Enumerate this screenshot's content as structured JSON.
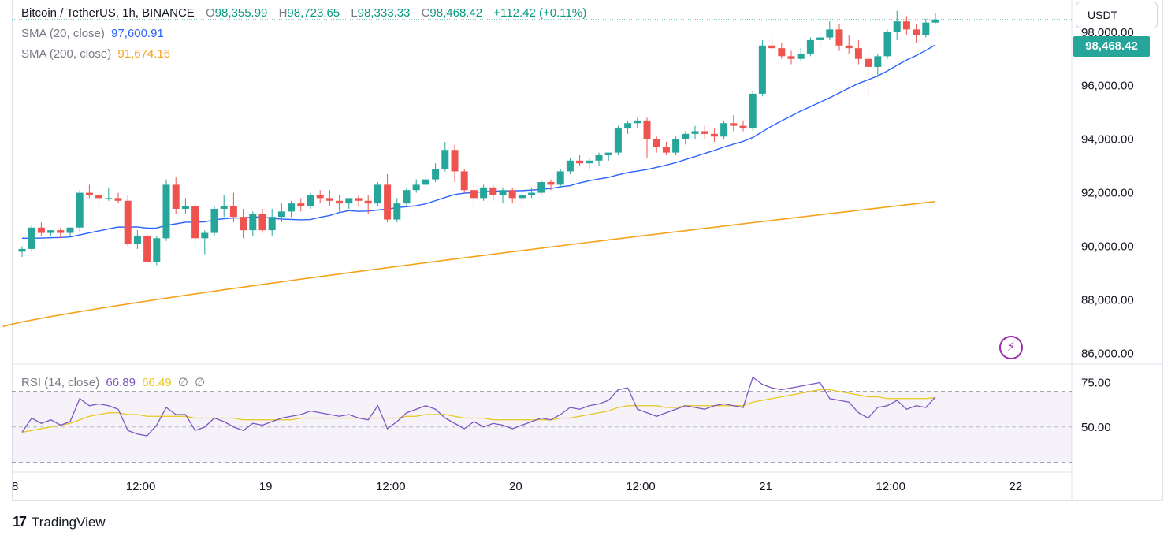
{
  "header": {
    "symbol": "Bitcoin / TetherUS, 1h, BINANCE",
    "o_key": "O",
    "o_val": "98,355.99",
    "h_key": "H",
    "h_val": "98,723.65",
    "l_key": "L",
    "l_val": "98,333.33",
    "c_key": "C",
    "c_val": "98,468.42",
    "change": "+112.42 (+0.11%)"
  },
  "sma20": {
    "label": "SMA (20, close)",
    "value": "97,600.91"
  },
  "sma200": {
    "label": "SMA (200, close)",
    "value": "91,674.16"
  },
  "rsi": {
    "label": "RSI (14, close)",
    "value": "66.89",
    "ma_value": "66.49",
    "extra1": "∅",
    "extra2": "∅"
  },
  "currency": "USDT",
  "last_price": "98,468.42",
  "brand": {
    "logo": "17",
    "name": "TradingView"
  },
  "colors": {
    "up": "#26a69a",
    "down": "#ef5350",
    "sma20": "#2962ff",
    "sma200": "#f7a21b",
    "rsi": "#7e57c2",
    "rsi_ma": "#e8c81c",
    "rsi_band": "#7e57c2"
  },
  "icons": {
    "alert": "lightning-bolt-icon"
  },
  "chart_data": [
    {
      "type": "candlestick",
      "ylim": [
        85600,
        99200
      ],
      "y_ticks": [
        "98,000.00",
        "96,000.00",
        "94,000.00",
        "92,000.00",
        "90,000.00",
        "88,000.00",
        "86,000.00"
      ],
      "y_tick_values": [
        98000,
        96000,
        94000,
        92000,
        90000,
        88000,
        86000
      ],
      "x_ticks": [
        "8",
        "12:00",
        "19",
        "12:00",
        "20",
        "12:00",
        "21",
        "12:00",
        "22"
      ],
      "x_tick_index": [
        0,
        13,
        26,
        39,
        52,
        65,
        78,
        91,
        104
      ],
      "candles": [
        [
          89800,
          90000,
          89600,
          89900
        ],
        [
          89900,
          90800,
          89800,
          90700
        ],
        [
          90700,
          90900,
          90400,
          90500
        ],
        [
          90500,
          90600,
          90400,
          90600
        ],
        [
          90600,
          90700,
          90300,
          90500
        ],
        [
          90500,
          90700,
          90400,
          90700
        ],
        [
          90700,
          92100,
          90500,
          92000
        ],
        [
          92000,
          92300,
          91800,
          91900
        ],
        [
          91900,
          92000,
          91500,
          91800
        ],
        [
          91800,
          92200,
          91700,
          91800
        ],
        [
          91800,
          92000,
          91600,
          91700
        ],
        [
          91700,
          91900,
          90000,
          90100
        ],
        [
          90100,
          90600,
          89900,
          90400
        ],
        [
          90400,
          90500,
          89300,
          89400
        ],
        [
          89400,
          90400,
          89300,
          90300
        ],
        [
          90300,
          92500,
          90200,
          92300
        ],
        [
          92300,
          92600,
          91200,
          91400
        ],
        [
          91400,
          91800,
          91200,
          91500
        ],
        [
          91500,
          91700,
          90000,
          90300
        ],
        [
          90300,
          90600,
          89700,
          90500
        ],
        [
          90500,
          91500,
          90400,
          91400
        ],
        [
          91400,
          91900,
          91100,
          91500
        ],
        [
          91500,
          92000,
          90900,
          91100
        ],
        [
          91100,
          91400,
          90300,
          90600
        ],
        [
          90600,
          91300,
          90400,
          91200
        ],
        [
          91200,
          91400,
          90500,
          90600
        ],
        [
          90600,
          91400,
          90400,
          91100
        ],
        [
          91100,
          91600,
          90900,
          91300
        ],
        [
          91300,
          91700,
          91100,
          91600
        ],
        [
          91600,
          91800,
          91300,
          91500
        ],
        [
          91500,
          92000,
          91400,
          91900
        ],
        [
          91900,
          92100,
          91600,
          91800
        ],
        [
          91800,
          92100,
          91500,
          91700
        ],
        [
          91700,
          91900,
          91300,
          91600
        ],
        [
          91600,
          91800,
          91400,
          91800
        ],
        [
          91800,
          91900,
          91500,
          91700
        ],
        [
          91700,
          91900,
          91200,
          91600
        ],
        [
          91600,
          92400,
          91500,
          92300
        ],
        [
          92300,
          92700,
          90900,
          91000
        ],
        [
          91000,
          91800,
          90900,
          91600
        ],
        [
          91600,
          92200,
          91500,
          92100
        ],
        [
          92100,
          92500,
          92000,
          92300
        ],
        [
          92300,
          92700,
          92200,
          92500
        ],
        [
          92500,
          93100,
          92400,
          92900
        ],
        [
          92900,
          93900,
          92800,
          93600
        ],
        [
          93600,
          93800,
          92400,
          92800
        ],
        [
          92800,
          92900,
          92000,
          92100
        ],
        [
          92100,
          92300,
          91500,
          91800
        ],
        [
          91800,
          92300,
          91700,
          92200
        ],
        [
          92200,
          92300,
          91700,
          91900
        ],
        [
          91900,
          92200,
          91600,
          92100
        ],
        [
          92100,
          92200,
          91600,
          91800
        ],
        [
          91800,
          92000,
          91500,
          91900
        ],
        [
          91900,
          92200,
          91800,
          92000
        ],
        [
          92000,
          92500,
          91900,
          92400
        ],
        [
          92400,
          92500,
          92100,
          92300
        ],
        [
          92300,
          92900,
          92200,
          92800
        ],
        [
          92800,
          93300,
          92700,
          93200
        ],
        [
          93200,
          93400,
          93000,
          93100
        ],
        [
          93100,
          93300,
          92900,
          93200
        ],
        [
          93200,
          93500,
          93000,
          93400
        ],
        [
          93400,
          93500,
          93200,
          93500
        ],
        [
          93500,
          94500,
          93400,
          94400
        ],
        [
          94400,
          94700,
          94200,
          94600
        ],
        [
          94600,
          94800,
          94400,
          94700
        ],
        [
          94700,
          94800,
          93300,
          94000
        ],
        [
          94000,
          94100,
          93500,
          93700
        ],
        [
          93700,
          93900,
          93400,
          93500
        ],
        [
          93500,
          94100,
          93400,
          94000
        ],
        [
          94000,
          94300,
          93800,
          94200
        ],
        [
          94200,
          94500,
          94000,
          94300
        ],
        [
          94300,
          94500,
          94000,
          94200
        ],
        [
          94200,
          94400,
          93900,
          94100
        ],
        [
          94100,
          94700,
          94000,
          94600
        ],
        [
          94600,
          94900,
          94300,
          94500
        ],
        [
          94500,
          94700,
          94300,
          94400
        ],
        [
          94400,
          95800,
          94300,
          95700
        ],
        [
          95700,
          97700,
          95600,
          97500
        ],
        [
          97500,
          97800,
          97300,
          97400
        ],
        [
          97400,
          97600,
          97000,
          97100
        ],
        [
          97100,
          97300,
          96800,
          97000
        ],
        [
          97000,
          97400,
          96900,
          97200
        ],
        [
          97200,
          97800,
          97100,
          97700
        ],
        [
          97700,
          98000,
          97500,
          97800
        ],
        [
          97800,
          98400,
          97700,
          98100
        ],
        [
          98100,
          98300,
          97300,
          97500
        ],
        [
          97500,
          97900,
          97200,
          97400
        ],
        [
          97400,
          97700,
          96800,
          97000
        ],
        [
          97000,
          97300,
          95600,
          96700
        ],
        [
          96700,
          97200,
          96300,
          97100
        ],
        [
          97100,
          98100,
          97000,
          98000
        ],
        [
          98000,
          98800,
          97700,
          98400
        ],
        [
          98400,
          98600,
          97900,
          98100
        ],
        [
          98100,
          98300,
          97600,
          97900
        ],
        [
          97900,
          98500,
          97800,
          98355.99
        ],
        [
          98355.99,
          98723.65,
          98333.33,
          98468.42
        ]
      ],
      "sma20_start": 90300,
      "sma200_start": 87000,
      "sma200_end": 91674.16,
      "sma20_end": 97600.91
    },
    {
      "type": "line",
      "title": "RSI (14, close)",
      "ylim": [
        25,
        85
      ],
      "y_ticks": [
        "75.00",
        "50.00"
      ],
      "y_tick_values": [
        75,
        50
      ],
      "bands": [
        30,
        50,
        70
      ],
      "rsi": [
        47,
        55,
        52,
        54,
        51,
        53,
        66,
        62,
        63,
        62,
        60,
        48,
        46,
        45,
        51,
        61,
        57,
        57,
        48,
        50,
        55,
        53,
        50,
        48,
        52,
        51,
        53,
        55,
        56,
        57,
        59,
        58,
        57,
        56,
        57,
        55,
        54,
        62,
        49,
        53,
        58,
        60,
        62,
        60,
        55,
        52,
        49,
        53,
        50,
        52,
        51,
        49,
        51,
        53,
        55,
        54,
        57,
        61,
        60,
        62,
        63,
        65,
        71,
        72,
        60,
        58,
        56,
        58,
        60,
        62,
        61,
        60,
        62,
        63,
        62,
        61,
        78,
        74,
        72,
        71,
        72,
        73,
        74,
        75,
        66,
        65,
        64,
        58,
        55,
        61,
        62,
        65,
        60,
        62,
        61,
        66.89
      ],
      "rsi_ma": [
        47,
        48,
        49,
        50,
        51,
        52,
        54,
        56,
        57,
        58,
        58,
        57,
        57,
        56,
        56,
        56,
        56,
        56,
        55,
        55,
        55,
        55,
        55,
        54,
        54,
        54,
        54,
        54,
        54,
        55,
        55,
        55,
        55,
        55,
        55,
        55,
        55,
        55,
        55,
        55,
        56,
        56,
        57,
        57,
        57,
        56,
        55,
        55,
        55,
        54,
        54,
        54,
        54,
        54,
        54,
        54,
        55,
        55,
        56,
        57,
        58,
        59,
        61,
        62,
        62,
        62,
        62,
        61,
        61,
        62,
        62,
        62,
        62,
        62,
        62,
        62,
        64,
        65,
        66,
        67,
        68,
        69,
        70,
        71,
        71,
        70,
        69,
        68,
        67,
        67,
        66,
        66,
        66,
        66,
        66,
        66.49
      ]
    }
  ]
}
